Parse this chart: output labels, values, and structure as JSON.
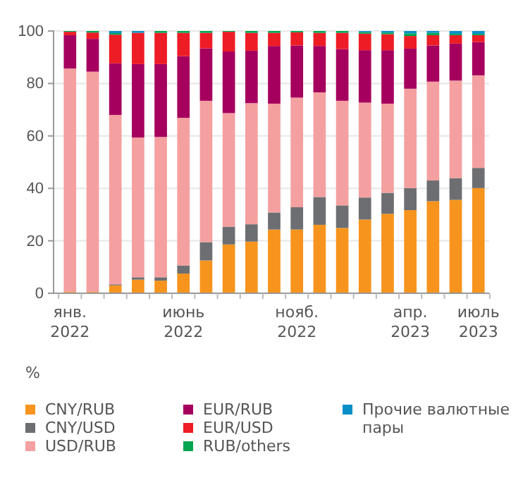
{
  "chart_data": {
    "type": "bar",
    "stacked": true,
    "ylabel": "%",
    "ylim": [
      0,
      100
    ],
    "yticks": [
      0,
      20,
      40,
      60,
      80,
      100
    ],
    "grid": "y",
    "legend": "bottom",
    "categories": [
      "янв. 2022",
      null,
      null,
      null,
      null,
      "июнь 2022",
      null,
      null,
      null,
      null,
      "нояб. 2022",
      null,
      null,
      null,
      null,
      "апр. 2023",
      null,
      null,
      "июль 2023"
    ],
    "series": [
      {
        "name": "CNY/RUB",
        "color": "#f7941d",
        "values": [
          0.5,
          0.5,
          3,
          5.2,
          4.8,
          7.5,
          12.5,
          18.6,
          19.7,
          24.3,
          24.3,
          26.1,
          24.9,
          28.1,
          30.3,
          31.7,
          35.1,
          35.6,
          40.1
        ]
      },
      {
        "name": "CNY/USD",
        "color": "#6d6e71",
        "values": [
          0,
          0,
          0.4,
          0.9,
          1.3,
          3.1,
          7,
          6.8,
          6.6,
          6.5,
          8.5,
          10.6,
          8.6,
          8.4,
          8,
          8.4,
          7.9,
          8.3,
          7.7
        ]
      },
      {
        "name": "USD/RUB",
        "color": "#f4a0a0",
        "values": [
          85.2,
          84,
          64.6,
          53.3,
          53.5,
          56.3,
          53.9,
          43.3,
          46.2,
          41.5,
          41.8,
          39.9,
          39.9,
          36.2,
          34,
          37.9,
          37.7,
          37.2,
          35.3
        ]
      },
      {
        "name": "EUR/RUB",
        "color": "#a6005e",
        "values": [
          12.7,
          12.5,
          19.7,
          28,
          27.8,
          23.5,
          20,
          23.5,
          20,
          22,
          19.9,
          17.7,
          19.7,
          20,
          20.4,
          15.3,
          13.8,
          14.1,
          12.7
        ]
      },
      {
        "name": "EUR/USD",
        "color": "#ee1c25",
        "values": [
          1.3,
          2.4,
          10.9,
          11.9,
          11.9,
          8.9,
          5.9,
          7.5,
          6.8,
          5,
          5,
          5,
          6.2,
          6.3,
          6.1,
          4.8,
          3.9,
          3.2,
          2.6
        ]
      },
      {
        "name": "RUB/others",
        "color": "#00a651",
        "values": [
          0.3,
          0.6,
          0.6,
          0,
          0.7,
          0.7,
          0.7,
          0.3,
          0.7,
          0.7,
          0.5,
          0.7,
          0.7,
          0.6,
          0.6,
          1,
          0.9,
          0.5,
          0.5
        ]
      },
      {
        "name": "Прочие валютные пары",
        "color": "#0a8fc7",
        "values": [
          0,
          0,
          0.8,
          0.7,
          0,
          0,
          0,
          0,
          0,
          0,
          0,
          0,
          0,
          0.4,
          0.6,
          0.9,
          0.7,
          1.1,
          1.1
        ]
      }
    ]
  }
}
